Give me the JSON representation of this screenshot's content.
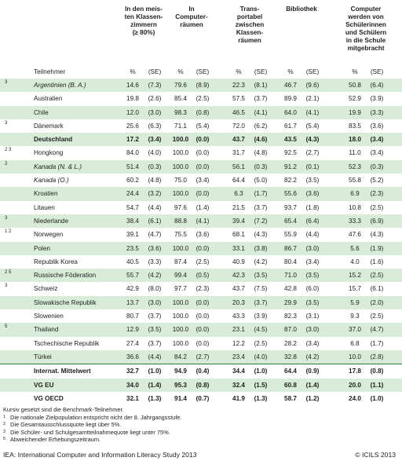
{
  "headers": [
    "In den meis-\nten Klassen-\nzimmern\n(≥ 80%)",
    "In\nComputer-\nräumen",
    "Trans-\nportabel\nzwischen\nKlassen-\nräumen",
    "Bibliothek",
    "Computer\nwerden von\nSchülerinnen\nund Schülern\nin die Schule\nmitgebracht"
  ],
  "row_label_header": "Teilnehmer",
  "pct_label": "%",
  "se_label": "(SE)",
  "rows": [
    {
      "note": "3",
      "name": "Argentinien (B. A.)",
      "italic": true,
      "values": [
        "14.6",
        "(7.3)",
        "79.6",
        "(8.9)",
        "22.3",
        "(8.1)",
        "46.7",
        "(9.6)",
        "50.8",
        "(6.4)"
      ]
    },
    {
      "note": "",
      "name": "Australien",
      "italic": false,
      "values": [
        "19.8",
        "(2.6)",
        "85.4",
        "(2.5)",
        "57.5",
        "(3.7)",
        "89.9",
        "(2.1)",
        "52.9",
        "(3.9)"
      ]
    },
    {
      "note": "",
      "name": "Chile",
      "italic": false,
      "values": [
        "12.0",
        "(3.0)",
        "98.3",
        "(0.8)",
        "46.5",
        "(4.1)",
        "64.0",
        "(4.1)",
        "19.9",
        "(3.3)"
      ]
    },
    {
      "note": "3",
      "name": "Dänemark",
      "italic": false,
      "values": [
        "25.6",
        "(6.3)",
        "71.1",
        "(5.4)",
        "72.0",
        "(6.2)",
        "61.7",
        "(5.4)",
        "83.5",
        "(3.6)"
      ]
    },
    {
      "note": "",
      "name": "Deutschland",
      "italic": false,
      "bold": true,
      "values": [
        "17.2",
        "(3.4)",
        "100.0",
        "(0.0)",
        "43.7",
        "(4.6)",
        "43.5",
        "(4.3)",
        "18.0",
        "(3.4)"
      ]
    },
    {
      "note": "2 3",
      "name": "Hongkong",
      "italic": false,
      "values": [
        "84.0",
        "(4.0)",
        "100.0",
        "(0.0)",
        "31.7",
        "(4.8)",
        "92.5",
        "(2.7)",
        "11.0",
        "(3.4)"
      ]
    },
    {
      "note": "2",
      "name": "Kanada (N. & L.)",
      "italic": true,
      "values": [
        "51.4",
        "(0.3)",
        "100.0",
        "(0.0)",
        "56.1",
        "(0.3)",
        "91.2",
        "(0.1)",
        "52.3",
        "(0.3)"
      ]
    },
    {
      "note": "",
      "name": "Kanada (O.)",
      "italic": true,
      "values": [
        "60.2",
        "(4.8)",
        "75.0",
        "(3.4)",
        "64.4",
        "(5.0)",
        "82.2",
        "(3.5)",
        "55.8",
        "(5.2)"
      ]
    },
    {
      "note": "",
      "name": "Kroatien",
      "italic": false,
      "values": [
        "24.4",
        "(3.2)",
        "100.0",
        "(0.0)",
        "6.3",
        "(1.7)",
        "55.6",
        "(3.6)",
        "6.9",
        "(2.3)"
      ]
    },
    {
      "note": "",
      "name": "Litauen",
      "italic": false,
      "values": [
        "54.7",
        "(4.4)",
        "97.6",
        "(1.4)",
        "21.5",
        "(3.7)",
        "93.7",
        "(1.8)",
        "10.8",
        "(2.5)"
      ]
    },
    {
      "note": "3",
      "name": "Niederlande",
      "italic": false,
      "values": [
        "38.4",
        "(6.1)",
        "88.8",
        "(4.1)",
        "39.4",
        "(7.2)",
        "65.4",
        "(6.4)",
        "33.3",
        "(6.9)"
      ]
    },
    {
      "note": "1 2",
      "name": "Norwegen",
      "italic": false,
      "values": [
        "39.1",
        "(4.7)",
        "75.5",
        "(3.6)",
        "68.1",
        "(4.3)",
        "55.9",
        "(4.4)",
        "47.6",
        "(4.3)"
      ]
    },
    {
      "note": "",
      "name": "Polen",
      "italic": false,
      "values": [
        "23.5",
        "(3.6)",
        "100.0",
        "(0.0)",
        "33.1",
        "(3.8)",
        "86.7",
        "(3.0)",
        "5.6",
        "(1.9)"
      ]
    },
    {
      "note": "",
      "name": "Republik Korea",
      "italic": false,
      "values": [
        "40.5",
        "(3.3)",
        "87.4",
        "(2.5)",
        "40.9",
        "(4.2)",
        "80.4",
        "(3.4)",
        "4.0",
        "(1.6)"
      ]
    },
    {
      "note": "2   5",
      "name": "Russische Föderation",
      "italic": false,
      "values": [
        "55.7",
        "(4.2)",
        "99.4",
        "(0.5)",
        "42.3",
        "(3.5)",
        "71.0",
        "(3.5)",
        "15.2",
        "(2.5)"
      ]
    },
    {
      "note": "3",
      "name": "Schweiz",
      "italic": false,
      "values": [
        "42.9",
        "(8.0)",
        "97.7",
        "(2.3)",
        "43.7",
        "(7.5)",
        "42.8",
        "(6.0)",
        "15.7",
        "(6.1)"
      ]
    },
    {
      "note": "",
      "name": "Slowakische Republik",
      "italic": false,
      "values": [
        "13.7",
        "(3.0)",
        "100.0",
        "(0.0)",
        "20.3",
        "(3.7)",
        "29.9",
        "(3.5)",
        "5.9",
        "(2.0)"
      ]
    },
    {
      "note": "",
      "name": "Slowenien",
      "italic": false,
      "values": [
        "80.7",
        "(3.7)",
        "100.0",
        "(0.0)",
        "43.3",
        "(3.9)",
        "82.3",
        "(3.1)",
        "9.3",
        "(2.5)"
      ]
    },
    {
      "note": "5",
      "name": "Thailand",
      "italic": false,
      "values": [
        "12.9",
        "(3.5)",
        "100.0",
        "(0.0)",
        "23.1",
        "(4.5)",
        "87.0",
        "(3.0)",
        "37.0",
        "(4.7)"
      ]
    },
    {
      "note": "",
      "name": "Tschechische Republik",
      "italic": false,
      "values": [
        "27.4",
        "(3.7)",
        "100.0",
        "(0.0)",
        "12.2",
        "(2.5)",
        "28.2",
        "(3.4)",
        "6.8",
        "(1.7)"
      ]
    },
    {
      "note": "",
      "name": "Türkei",
      "italic": false,
      "values": [
        "36.6",
        "(4.4)",
        "84.2",
        "(2.7)",
        "23.4",
        "(4.0)",
        "32.8",
        "(4.2)",
        "10.0",
        "(2.8)"
      ]
    },
    {
      "note": "",
      "name": "Internat. Mittelwert",
      "italic": false,
      "bold": true,
      "values": [
        "32.7",
        "(1.0)",
        "94.9",
        "(0.4)",
        "34.4",
        "(1.0)",
        "64.4",
        "(0.9)",
        "17.8",
        "(0.8)"
      ]
    },
    {
      "note": "",
      "name": "VG EU",
      "italic": false,
      "bold": true,
      "values": [
        "34.0",
        "(1.4)",
        "95.3",
        "(0.8)",
        "32.4",
        "(1.5)",
        "60.8",
        "(1.4)",
        "20.0",
        "(1.1)"
      ]
    },
    {
      "note": "",
      "name": "VG OECD",
      "italic": false,
      "bold": true,
      "values": [
        "32.1",
        "(1.3)",
        "91.4",
        "(0.7)",
        "41.9",
        "(1.3)",
        "58.7",
        "(1.2)",
        "24.0",
        "(1.0)"
      ]
    }
  ],
  "footnotes": [
    {
      "mark": "",
      "text": "Kursiv gesetzt sind die Benchmark-Teilnehmer."
    },
    {
      "mark": "1",
      "text": "Die nationale Zielpopulation entspricht nicht der 8. Jahrgangsstufe."
    },
    {
      "mark": "2",
      "text": "Die Gesamtausschlussquote liegt über 5%."
    },
    {
      "mark": "3",
      "text": "Die Schüler- und Schulgesamtteilnahmequote liegt unter 75%."
    },
    {
      "mark": "5",
      "text": "Abweichender Erhebungszeitraum."
    }
  ],
  "source": "IEA: International Computer and Information Literacy Study 2013",
  "copyright": "© ICILS 2013",
  "colors": {
    "stripe": "#d8ecd9",
    "rule": "#2b7a3e"
  }
}
